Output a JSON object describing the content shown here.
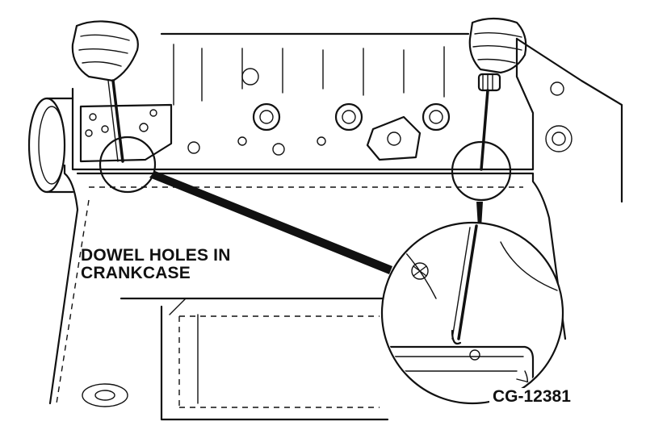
{
  "figure": {
    "label_dowel": "DOWEL HOLES IN\nCRANKCASE",
    "figure_number": "CG-12381"
  },
  "colors": {
    "ink": "#111111",
    "paper": "#ffffff"
  }
}
